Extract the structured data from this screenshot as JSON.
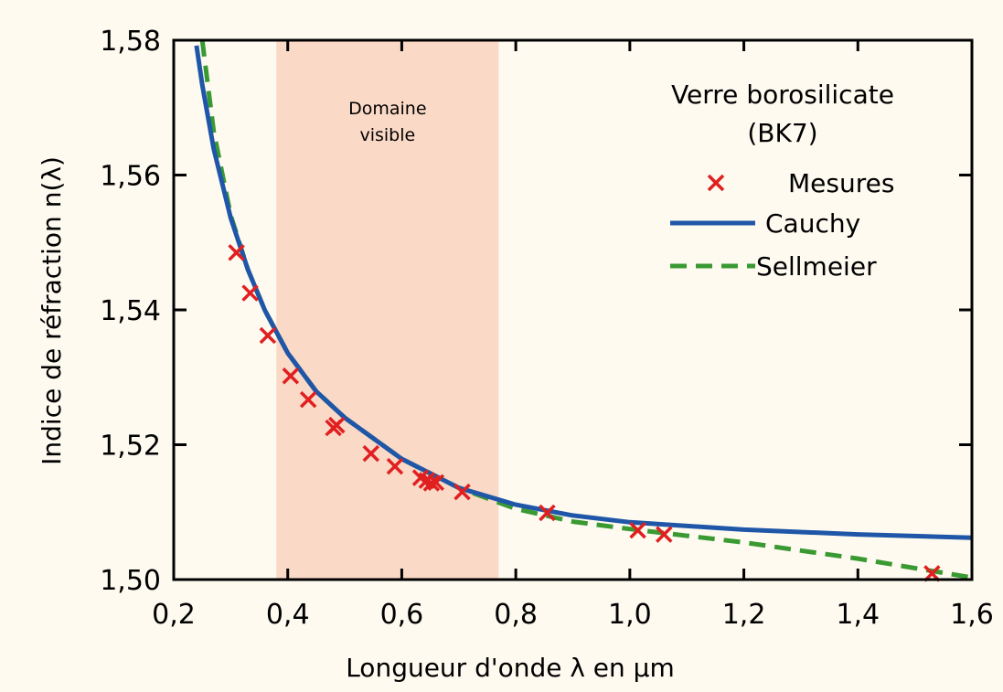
{
  "chart_data": {
    "type": "line",
    "xlabel": "Longueur d'onde λ en µm",
    "ylabel": "Indice de réfraction n(λ)",
    "xlim": [
      0.2,
      1.6
    ],
    "ylim": [
      1.5,
      1.58
    ],
    "x_ticks": [
      0.2,
      0.4,
      0.6,
      0.8,
      1.0,
      1.2,
      1.4,
      1.6
    ],
    "x_tick_labels": [
      "0,2",
      "0,4",
      "0,6",
      "0,8",
      "1,0",
      "1,2",
      "1,4",
      "1,6"
    ],
    "y_ticks": [
      1.5,
      1.52,
      1.54,
      1.56,
      1.58
    ],
    "y_tick_labels": [
      "1,50",
      "1,52",
      "1,54",
      "1,56",
      "1,58"
    ],
    "grid": false,
    "legend_placement": "top-right",
    "annotation": {
      "line1": "Verre borosilicate",
      "line2": "(BK7)"
    },
    "band": {
      "label_line1": "Domaine",
      "label_line2": "visible",
      "x_start": 0.38,
      "x_end": 0.77,
      "color": "#fbd9c7"
    },
    "series": [
      {
        "name": "Mesures",
        "kind": "markers",
        "marker": "x",
        "color": "#e02020",
        "x": [
          0.31,
          0.334,
          0.365,
          0.405,
          0.436,
          0.48,
          0.486,
          0.546,
          0.588,
          0.633,
          0.644,
          0.652,
          0.66,
          0.706,
          0.855,
          1.014,
          1.06,
          1.53
        ],
        "y": [
          1.5485,
          1.5425,
          1.5362,
          1.5302,
          1.5267,
          1.5225,
          1.5229,
          1.5187,
          1.5168,
          1.5151,
          1.5147,
          1.5143,
          1.5144,
          1.513,
          1.5099,
          1.5073,
          1.5067,
          1.5009
        ]
      },
      {
        "name": "Cauchy",
        "kind": "line",
        "style": "solid",
        "color": "#1f56a8",
        "x": [
          0.24,
          0.25,
          0.27,
          0.3,
          0.33,
          0.36,
          0.4,
          0.45,
          0.5,
          0.6,
          0.7,
          0.8,
          0.9,
          1.0,
          1.2,
          1.4,
          1.6
        ],
        "y": [
          1.5792,
          1.5734,
          1.5639,
          1.5536,
          1.546,
          1.5399,
          1.5336,
          1.5279,
          1.524,
          1.5179,
          1.5136,
          1.5111,
          1.5095,
          1.5085,
          1.5074,
          1.5067,
          1.5062
        ]
      },
      {
        "name": "Sellmeier",
        "kind": "line",
        "style": "dashed",
        "color": "#3a9a32",
        "x": [
          0.25,
          0.27,
          0.3,
          0.33,
          0.36,
          0.4,
          0.45,
          0.5,
          0.6,
          0.7,
          0.8,
          0.9,
          1.0,
          1.1,
          1.2,
          1.3,
          1.4,
          1.5,
          1.6
        ],
        "y": [
          1.58,
          1.5665,
          1.554,
          1.546,
          1.5399,
          1.5336,
          1.5279,
          1.524,
          1.5179,
          1.5136,
          1.5105,
          1.5086,
          1.5075,
          1.5065,
          1.5055,
          1.5043,
          1.5031,
          1.5017,
          1.5003
        ]
      }
    ]
  }
}
